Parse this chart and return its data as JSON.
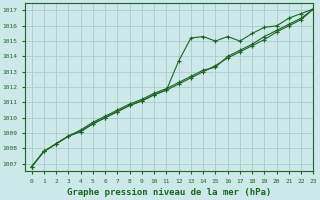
{
  "title": "Graphe pression niveau de la mer (hPa)",
  "background_color": "#cce8e8",
  "grid_color": "#aacccc",
  "line_color": "#1a6620",
  "marker_color": "#1a6620",
  "xlim": [
    -0.5,
    23
  ],
  "ylim": [
    1006.5,
    1017.5
  ],
  "yticks": [
    1007,
    1008,
    1009,
    1010,
    1011,
    1012,
    1013,
    1014,
    1015,
    1016,
    1017
  ],
  "xticks": [
    0,
    1,
    2,
    3,
    4,
    5,
    6,
    7,
    8,
    9,
    10,
    11,
    12,
    13,
    14,
    15,
    16,
    17,
    18,
    19,
    20,
    21,
    22,
    23
  ],
  "series": [
    [
      1006.8,
      1007.8,
      1008.3,
      1008.8,
      1009.1,
      1009.6,
      1010.0,
      1010.4,
      1010.8,
      1011.1,
      1011.5,
      1011.8,
      1013.7,
      1015.2,
      1015.3,
      1015.0,
      1015.3,
      1015.0,
      1015.5,
      1015.9,
      1016.0,
      1016.5,
      1016.8,
      1017.1
    ],
    [
      1006.8,
      1007.8,
      1008.3,
      1008.8,
      1009.1,
      1009.6,
      1010.0,
      1010.4,
      1010.8,
      1011.1,
      1011.5,
      1011.8,
      1012.2,
      1012.6,
      1013.0,
      1013.4,
      1013.9,
      1014.3,
      1014.7,
      1015.1,
      1015.6,
      1016.0,
      1016.4,
      1017.1
    ],
    [
      1006.8,
      1007.8,
      1008.3,
      1008.8,
      1009.2,
      1009.7,
      1010.1,
      1010.5,
      1010.9,
      1011.2,
      1011.6,
      1011.9,
      1012.3,
      1012.7,
      1013.1,
      1013.3,
      1014.0,
      1014.4,
      1014.8,
      1015.3,
      1015.7,
      1016.1,
      1016.5,
      1017.1
    ]
  ]
}
